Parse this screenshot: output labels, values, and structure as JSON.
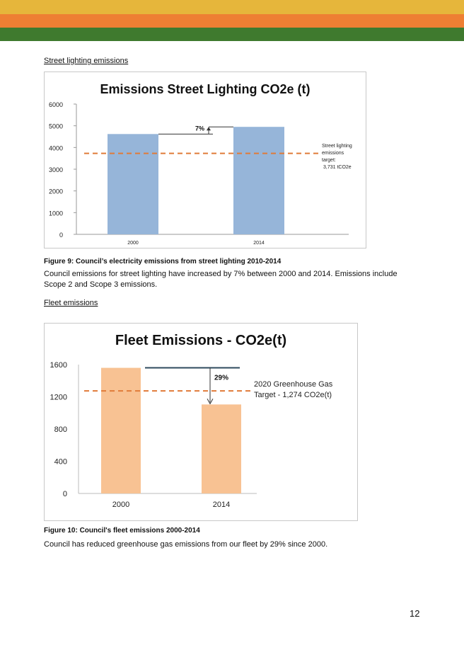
{
  "colors": {
    "band_yellow": "#e6b63b",
    "band_orange": "#ee7f33",
    "band_green": "#3f7a2e",
    "bar_blue": "#96b5d9",
    "bar_peach": "#f8c293",
    "target_line": "#e07b39",
    "arrow_line": "#2e4a5e"
  },
  "sections": {
    "street_heading": "Street lighting emissions",
    "fig9_caption": "Figure 9: Council’s electricity emissions from street lighting 2010-2014",
    "fig9_body_1": "Council emissions for street lighting have increased by 7% between 2000 and 2014. Emissions include",
    "fig9_body_2": "Scope 2 and Scope 3 emissions.",
    "fleet_heading": "Fleet emissions",
    "fig10_caption": "Figure 10: Council's fleet emissions 2000-2014",
    "fig10_body": "Council has reduced greenhouse gas emissions from our fleet by 29% since 2000."
  },
  "page_number": "12",
  "chart_data": [
    {
      "type": "bar",
      "title": "Emissions Street Lighting CO2e (t)",
      "categories": [
        "2000",
        "2014"
      ],
      "values": [
        4620,
        4950
      ],
      "ylim": [
        0,
        6000
      ],
      "yticks": [
        "0",
        "1000",
        "2000",
        "3000",
        "4000",
        "5000",
        "6000"
      ],
      "xlabel": "",
      "ylabel": "",
      "grid": false,
      "target_value": 3731,
      "target_label_lines": [
        "Street lighting",
        "emissions",
        "target:",
        "3,731 tCO2e"
      ],
      "change_label": "7%"
    },
    {
      "type": "bar",
      "title": "Fleet Emissions - CO2e(t)",
      "categories": [
        "2000",
        "2014"
      ],
      "values": [
        1560,
        1105
      ],
      "ylim": [
        0,
        1600
      ],
      "yticks": [
        "0",
        "400",
        "800",
        "1200",
        "1600"
      ],
      "xlabel": "",
      "ylabel": "",
      "grid": false,
      "target_value": 1274,
      "target_label_lines": [
        "2020 Greenhouse Gas",
        "Target - 1,274 CO2e(t)"
      ],
      "change_label": "29%"
    }
  ]
}
